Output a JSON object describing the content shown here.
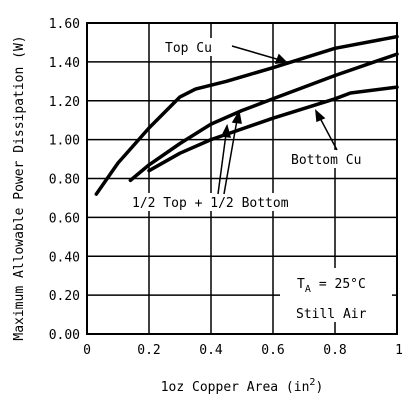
{
  "chart_data": {
    "type": "line",
    "title": "",
    "xlabel": "1oz Copper Area (in",
    "xlabel_sup": "2",
    "xlabel_close": ")",
    "ylabel": "Maximum Allowable Power Dissipation (W)",
    "xlim": [
      0,
      1
    ],
    "ylim": [
      0,
      1.6
    ],
    "x_ticks": [
      0,
      0.2,
      0.4,
      0.6,
      0.8,
      1
    ],
    "x_tick_labels": [
      "0",
      "0.2",
      "0.4",
      "0.6",
      "0.8",
      "1"
    ],
    "y_ticks": [
      0,
      0.2,
      0.4,
      0.6,
      0.8,
      1.0,
      1.2,
      1.4,
      1.6
    ],
    "y_tick_labels": [
      "0.00",
      "0.20",
      "0.40",
      "0.60",
      "0.80",
      "1.00",
      "1.20",
      "1.40",
      "1.60"
    ],
    "grid": true,
    "series": [
      {
        "name": "Top Cu",
        "x": [
          0.03,
          0.1,
          0.2,
          0.3,
          0.35,
          0.45,
          0.6,
          0.8,
          1.0
        ],
        "y": [
          0.72,
          0.88,
          1.06,
          1.22,
          1.26,
          1.3,
          1.37,
          1.47,
          1.53
        ]
      },
      {
        "name": "1/2 Top + 1/2 Bottom",
        "x": [
          0.14,
          0.2,
          0.3,
          0.4,
          0.5,
          0.6,
          0.8,
          1.0
        ],
        "y": [
          0.79,
          0.87,
          0.98,
          1.08,
          1.15,
          1.21,
          1.33,
          1.44
        ]
      },
      {
        "name": "Bottom Cu",
        "x": [
          0.2,
          0.3,
          0.4,
          0.6,
          0.8,
          0.85,
          1.0
        ],
        "y": [
          0.84,
          0.93,
          1.0,
          1.11,
          1.21,
          1.24,
          1.27
        ]
      }
    ],
    "annotations": {
      "top_cu": "Top Cu",
      "half": "1/2 Top + 1/2 Bottom",
      "bottom_cu": "Bottom Cu",
      "ta_prefix": "T",
      "ta_sub": "A",
      "ta_value": "= 25°C",
      "still_air": "Still Air"
    }
  }
}
